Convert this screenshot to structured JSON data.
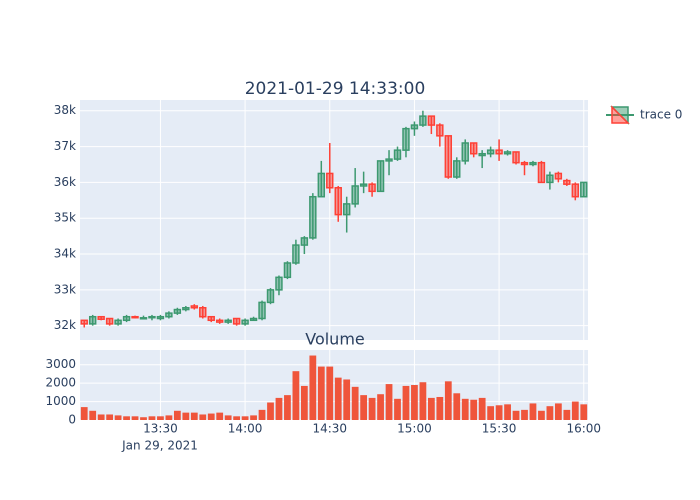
{
  "chart_data": [
    {
      "type": "candlestick",
      "title": "2021-01-29 14:33:00",
      "legend": "trace 0",
      "legend_position": "top-right",
      "increasing_color": "#3D9970",
      "decreasing_color": "#FF4136",
      "grid": true,
      "x": [
        "2021-01-29 13:03",
        "2021-01-29 13:06",
        "2021-01-29 13:09",
        "2021-01-29 13:12",
        "2021-01-29 13:15",
        "2021-01-29 13:18",
        "2021-01-29 13:21",
        "2021-01-29 13:24",
        "2021-01-29 13:27",
        "2021-01-29 13:30",
        "2021-01-29 13:33",
        "2021-01-29 13:36",
        "2021-01-29 13:39",
        "2021-01-29 13:42",
        "2021-01-29 13:45",
        "2021-01-29 13:48",
        "2021-01-29 13:51",
        "2021-01-29 13:54",
        "2021-01-29 13:57",
        "2021-01-29 14:00",
        "2021-01-29 14:03",
        "2021-01-29 14:06",
        "2021-01-29 14:09",
        "2021-01-29 14:12",
        "2021-01-29 14:15",
        "2021-01-29 14:18",
        "2021-01-29 14:21",
        "2021-01-29 14:24",
        "2021-01-29 14:27",
        "2021-01-29 14:30",
        "2021-01-29 14:33",
        "2021-01-29 14:36",
        "2021-01-29 14:39",
        "2021-01-29 14:42",
        "2021-01-29 14:45",
        "2021-01-29 14:48",
        "2021-01-29 14:51",
        "2021-01-29 14:54",
        "2021-01-29 14:57",
        "2021-01-29 15:00",
        "2021-01-29 15:03",
        "2021-01-29 15:06",
        "2021-01-29 15:09",
        "2021-01-29 15:12",
        "2021-01-29 15:15",
        "2021-01-29 15:18",
        "2021-01-29 15:21",
        "2021-01-29 15:24",
        "2021-01-29 15:27",
        "2021-01-29 15:30",
        "2021-01-29 15:33",
        "2021-01-29 15:36",
        "2021-01-29 15:39",
        "2021-01-29 15:42",
        "2021-01-29 15:45",
        "2021-01-29 15:48",
        "2021-01-29 15:51",
        "2021-01-29 15:54",
        "2021-01-29 15:57",
        "2021-01-29 16:00"
      ],
      "open": [
        32150,
        32050,
        32250,
        32200,
        32050,
        32150,
        32250,
        32200,
        32250,
        32200,
        32250,
        32350,
        32450,
        32550,
        32500,
        32250,
        32150,
        32100,
        32200,
        32050,
        32150,
        32200,
        32650,
        33000,
        33350,
        33750,
        34250,
        34450,
        35600,
        36250,
        35850,
        35100,
        35400,
        35900,
        35950,
        35750,
        36600,
        36650,
        36900,
        37500,
        37600,
        37850,
        37600,
        37300,
        36150,
        36600,
        37100,
        36750,
        36800,
        36900,
        36800,
        36850,
        36550,
        36500,
        36550,
        36000,
        36250,
        36050,
        35950,
        35600
      ],
      "high": [
        32150,
        32300,
        32250,
        32200,
        32200,
        32300,
        32280,
        32280,
        32300,
        32300,
        32400,
        32500,
        32550,
        32600,
        32550,
        32250,
        32200,
        32200,
        32200,
        32200,
        32250,
        32700,
        33050,
        33400,
        33800,
        34400,
        34500,
        35700,
        36600,
        37100,
        35900,
        35600,
        36400,
        36300,
        36000,
        36600,
        36900,
        37000,
        37550,
        37700,
        38000,
        37850,
        37650,
        37300,
        36700,
        37200,
        37100,
        36900,
        37000,
        37200,
        36900,
        36850,
        36600,
        36600,
        36600,
        36300,
        36300,
        36100,
        36000,
        36000
      ],
      "low": [
        31950,
        32000,
        32150,
        32000,
        32000,
        32100,
        32200,
        32180,
        32150,
        32150,
        32200,
        32300,
        32400,
        32450,
        32200,
        32100,
        32050,
        32050,
        32000,
        32000,
        32150,
        32150,
        32600,
        32850,
        33300,
        33700,
        34000,
        34400,
        35600,
        35700,
        34900,
        34600,
        35300,
        35700,
        35600,
        35750,
        36200,
        36600,
        36700,
        37300,
        37550,
        37350,
        37000,
        36100,
        36100,
        36500,
        36700,
        36400,
        36700,
        36600,
        36750,
        36500,
        36200,
        36450,
        36000,
        35800,
        36000,
        35900,
        35500,
        35600
      ],
      "close": [
        32050,
        32250,
        32180,
        32050,
        32150,
        32250,
        32230,
        32220,
        32250,
        32250,
        32350,
        32450,
        32500,
        32500,
        32250,
        32150,
        32100,
        32150,
        32050,
        32150,
        32200,
        32650,
        33000,
        33350,
        33750,
        34250,
        34450,
        35600,
        36250,
        35850,
        35100,
        35400,
        35900,
        35950,
        35750,
        36600,
        36650,
        36900,
        37500,
        37600,
        37850,
        37600,
        37300,
        36150,
        36600,
        37100,
        36800,
        36800,
        36900,
        36800,
        36850,
        36550,
        36500,
        36550,
        36000,
        36200,
        36100,
        35950,
        35600,
        36000
      ],
      "xlim": [
        "2021-01-29 13:01:30",
        "2021-01-29 16:01:30"
      ],
      "xticks": [
        "2021-01-29 13:30",
        "2021-01-29 14:00",
        "2021-01-29 14:30",
        "2021-01-29 15:00",
        "2021-01-29 15:30",
        "2021-01-29 16:00"
      ],
      "ylim": [
        31600,
        38300
      ],
      "yticks": [
        {
          "value": 32000,
          "label": "32k"
        },
        {
          "value": 33000,
          "label": "33k"
        },
        {
          "value": 34000,
          "label": "34k"
        },
        {
          "value": 35000,
          "label": "35k"
        },
        {
          "value": 36000,
          "label": "36k"
        },
        {
          "value": 37000,
          "label": "37k"
        },
        {
          "value": 38000,
          "label": "38k"
        }
      ]
    },
    {
      "type": "bar",
      "title": "Volume",
      "color": "#EF553B",
      "grid": true,
      "x": [
        "2021-01-29 13:03",
        "2021-01-29 13:06",
        "2021-01-29 13:09",
        "2021-01-29 13:12",
        "2021-01-29 13:15",
        "2021-01-29 13:18",
        "2021-01-29 13:21",
        "2021-01-29 13:24",
        "2021-01-29 13:27",
        "2021-01-29 13:30",
        "2021-01-29 13:33",
        "2021-01-29 13:36",
        "2021-01-29 13:39",
        "2021-01-29 13:42",
        "2021-01-29 13:45",
        "2021-01-29 13:48",
        "2021-01-29 13:51",
        "2021-01-29 13:54",
        "2021-01-29 13:57",
        "2021-01-29 14:00",
        "2021-01-29 14:03",
        "2021-01-29 14:06",
        "2021-01-29 14:09",
        "2021-01-29 14:12",
        "2021-01-29 14:15",
        "2021-01-29 14:18",
        "2021-01-29 14:21",
        "2021-01-29 14:24",
        "2021-01-29 14:27",
        "2021-01-29 14:30",
        "2021-01-29 14:33",
        "2021-01-29 14:36",
        "2021-01-29 14:39",
        "2021-01-29 14:42",
        "2021-01-29 14:45",
        "2021-01-29 14:48",
        "2021-01-29 14:51",
        "2021-01-29 14:54",
        "2021-01-29 14:57",
        "2021-01-29 15:00",
        "2021-01-29 15:03",
        "2021-01-29 15:06",
        "2021-01-29 15:09",
        "2021-01-29 15:12",
        "2021-01-29 15:15",
        "2021-01-29 15:18",
        "2021-01-29 15:21",
        "2021-01-29 15:24",
        "2021-01-29 15:27",
        "2021-01-29 15:30",
        "2021-01-29 15:33",
        "2021-01-29 15:36",
        "2021-01-29 15:39",
        "2021-01-29 15:42",
        "2021-01-29 15:45",
        "2021-01-29 15:48",
        "2021-01-29 15:51",
        "2021-01-29 15:54",
        "2021-01-29 15:57",
        "2021-01-29 16:00"
      ],
      "values": [
        700,
        500,
        300,
        300,
        250,
        200,
        200,
        150,
        200,
        200,
        250,
        500,
        400,
        400,
        300,
        350,
        400,
        250,
        200,
        200,
        250,
        550,
        950,
        1200,
        1350,
        2650,
        1850,
        3500,
        2900,
        2900,
        2300,
        2200,
        1800,
        1350,
        1200,
        1400,
        1950,
        1150,
        1850,
        1900,
        2050,
        1200,
        1250,
        2100,
        1450,
        1150,
        1100,
        1200,
        750,
        800,
        850,
        500,
        550,
        900,
        500,
        750,
        900,
        550,
        1000,
        850
      ],
      "xlim": [
        "2021-01-29 13:01:30",
        "2021-01-29 16:01:30"
      ],
      "xticks": [
        {
          "value": "2021-01-29 13:30",
          "label": "13:30"
        },
        {
          "value": "2021-01-29 14:00",
          "label": "14:00"
        },
        {
          "value": "2021-01-29 14:30",
          "label": "14:30"
        },
        {
          "value": "2021-01-29 15:00",
          "label": "15:00"
        },
        {
          "value": "2021-01-29 15:30",
          "label": "15:30"
        },
        {
          "value": "2021-01-29 16:00",
          "label": "16:00"
        }
      ],
      "x_date_label": "Jan 29, 2021",
      "ylim": [
        0,
        3800
      ],
      "yticks": [
        0,
        1000,
        2000,
        3000
      ]
    }
  ]
}
